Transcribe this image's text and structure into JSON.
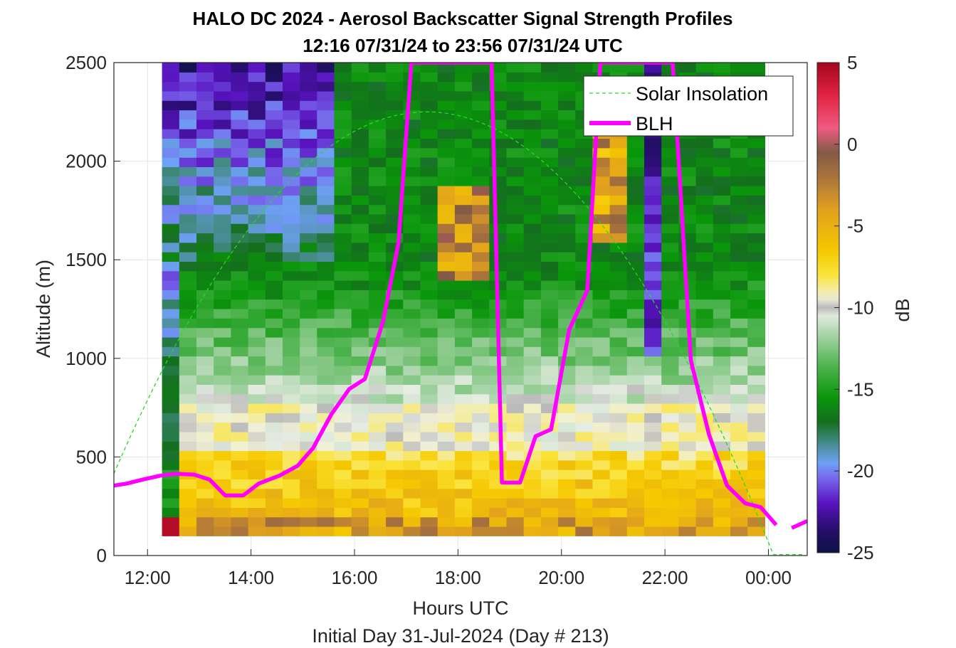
{
  "chart_data": {
    "type": "heatmap",
    "title": "HALO DC 2024 - Aerosol Backscatter Signal Strength Profiles",
    "subtitle": "12:16 07/31/24 to 23:56 07/31/24  UTC",
    "xlabel": "Hours UTC",
    "xlabel2": "Initial Day 31-Jul-2024 (Day # 213)",
    "ylabel": "Altitude (m)",
    "xlim_hours": [
      11.35,
      24.75
    ],
    "ylim": [
      0,
      2500
    ],
    "x_ticks": [
      {
        "value": 12,
        "label": "12:00"
      },
      {
        "value": 14,
        "label": "14:00"
      },
      {
        "value": 16,
        "label": "16:00"
      },
      {
        "value": 18,
        "label": "18:00"
      },
      {
        "value": 20,
        "label": "20:00"
      },
      {
        "value": 22,
        "label": "22:00"
      },
      {
        "value": 24,
        "label": "00:00"
      }
    ],
    "y_ticks": [
      0,
      500,
      1000,
      1500,
      2000,
      2500
    ],
    "grid": true,
    "colorbar": {
      "label": "dB",
      "range": [
        -25,
        5
      ],
      "ticks": [
        -25,
        -20,
        -15,
        -10,
        -5,
        0,
        5
      ]
    },
    "legend": {
      "placement": "top-right",
      "entries": [
        {
          "name": "Solar Insolation",
          "color": "#22dd22",
          "style": "dashed"
        },
        {
          "name": "BLH",
          "color": "#ff00ff",
          "style": "solid"
        }
      ]
    },
    "heatmap": {
      "t_start": 12.28,
      "t_end": 23.93,
      "n_columns": 35,
      "alt_start": 100,
      "alt_end": 2500,
      "n_rows": 50
    },
    "series": [
      {
        "name": "BLH",
        "color": "#ff00ff",
        "points": [
          [
            11.35,
            355
          ],
          [
            11.6,
            365
          ],
          [
            11.9,
            385
          ],
          [
            12.25,
            405
          ],
          [
            12.55,
            415
          ],
          [
            12.9,
            410
          ],
          [
            13.2,
            385
          ],
          [
            13.5,
            305
          ],
          [
            13.85,
            305
          ],
          [
            14.15,
            365
          ],
          [
            14.55,
            405
          ],
          [
            14.9,
            455
          ],
          [
            15.2,
            545
          ],
          [
            15.55,
            715
          ],
          [
            15.9,
            845
          ],
          [
            16.2,
            895
          ],
          [
            16.55,
            1185
          ],
          [
            16.85,
            1585
          ],
          [
            17.1,
            2500
          ],
          [
            18.65,
            2500
          ],
          [
            18.85,
            370
          ],
          [
            19.2,
            370
          ],
          [
            19.5,
            605
          ],
          [
            19.8,
            640
          ],
          [
            20.15,
            1145
          ],
          [
            20.5,
            1345
          ],
          [
            20.75,
            2500
          ],
          [
            22.15,
            2500
          ],
          [
            22.5,
            990
          ],
          [
            22.85,
            615
          ],
          [
            23.2,
            355
          ],
          [
            23.55,
            265
          ],
          [
            23.85,
            245
          ],
          [
            24.15,
            155
          ]
        ],
        "points_tail": [
          [
            24.45,
            140
          ],
          [
            24.75,
            175
          ]
        ]
      },
      {
        "name": "Solar Insolation",
        "color": "#22dd22",
        "shape": "daylight arch",
        "peak_hours": 17.4,
        "peak_altitude": 2250,
        "half_width_hours": 6.7,
        "zero_crossing_hours": 24.4
      }
    ]
  }
}
